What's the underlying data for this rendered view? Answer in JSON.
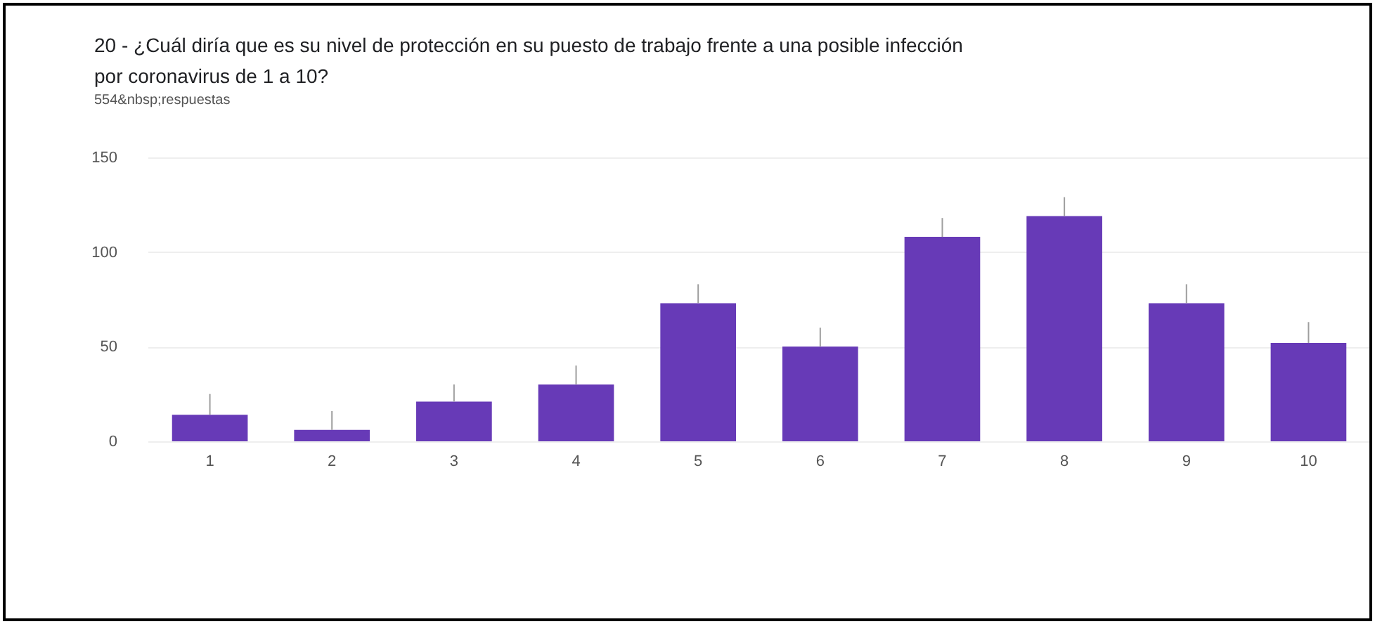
{
  "chart_data": {
    "type": "bar",
    "title": [
      "20 - ¿Cuál diría que es su nivel de protección en su puesto de trabajo frente a una posible infección",
      "por coronavirus de 1 a 10?"
    ],
    "subtitle": "554&nbsp;respuestas",
    "categories": [
      "1",
      "2",
      "3",
      "4",
      "5",
      "6",
      "7",
      "8",
      "9",
      "10"
    ],
    "values": [
      14,
      6,
      21,
      30,
      73,
      50,
      108,
      119,
      73,
      52
    ],
    "errors": [
      [
        14,
        25
      ],
      [
        6,
        16
      ],
      [
        21,
        30
      ],
      [
        30,
        40
      ],
      [
        73,
        83
      ],
      [
        50,
        60
      ],
      [
        108,
        118
      ],
      [
        119,
        129
      ],
      [
        73,
        83
      ],
      [
        52,
        63
      ]
    ],
    "color": "#673ab7",
    "ylim": [
      0,
      150
    ],
    "yticks": [
      0,
      50,
      100,
      150
    ],
    "grid": "y"
  }
}
